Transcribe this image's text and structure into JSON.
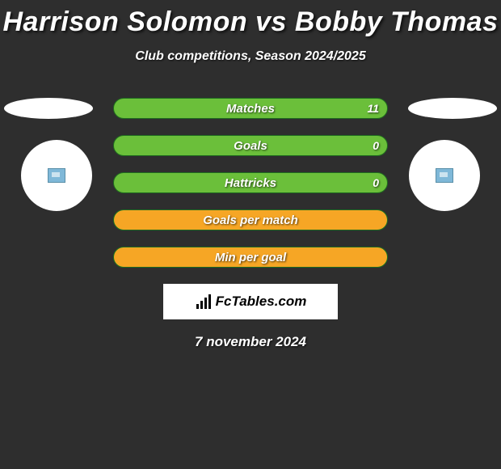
{
  "title": "Harrison Solomon vs Bobby Thomas",
  "subtitle": "Club competitions, Season 2024/2025",
  "date": "7 november 2024",
  "brand": "FcTables.com",
  "colors": {
    "background": "#2e2e2e",
    "bar_green": "#6bbf3a",
    "bar_border": "#1f6b1f",
    "bar_orange": "#f6a625",
    "text": "#ffffff"
  },
  "stats": [
    {
      "label": "Matches",
      "value_right": "11",
      "fill_pct": 0
    },
    {
      "label": "Goals",
      "value_right": "0",
      "fill_pct": 0
    },
    {
      "label": "Hattricks",
      "value_right": "0",
      "fill_pct": 0
    },
    {
      "label": "Goals per match",
      "value_right": "",
      "fill_pct": 100
    },
    {
      "label": "Min per goal",
      "value_right": "",
      "fill_pct": 100
    }
  ]
}
